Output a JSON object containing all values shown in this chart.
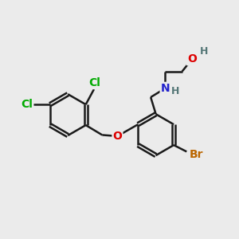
{
  "bg_color": "#ebebeb",
  "bond_color": "#1a1a1a",
  "bond_width": 1.8,
  "atom_colors": {
    "Cl": "#00aa00",
    "O": "#dd0000",
    "N": "#2222cc",
    "Br": "#bb6600",
    "H": "#557777",
    "C": "#1a1a1a"
  },
  "font_size_atom": 10,
  "font_size_h": 9
}
